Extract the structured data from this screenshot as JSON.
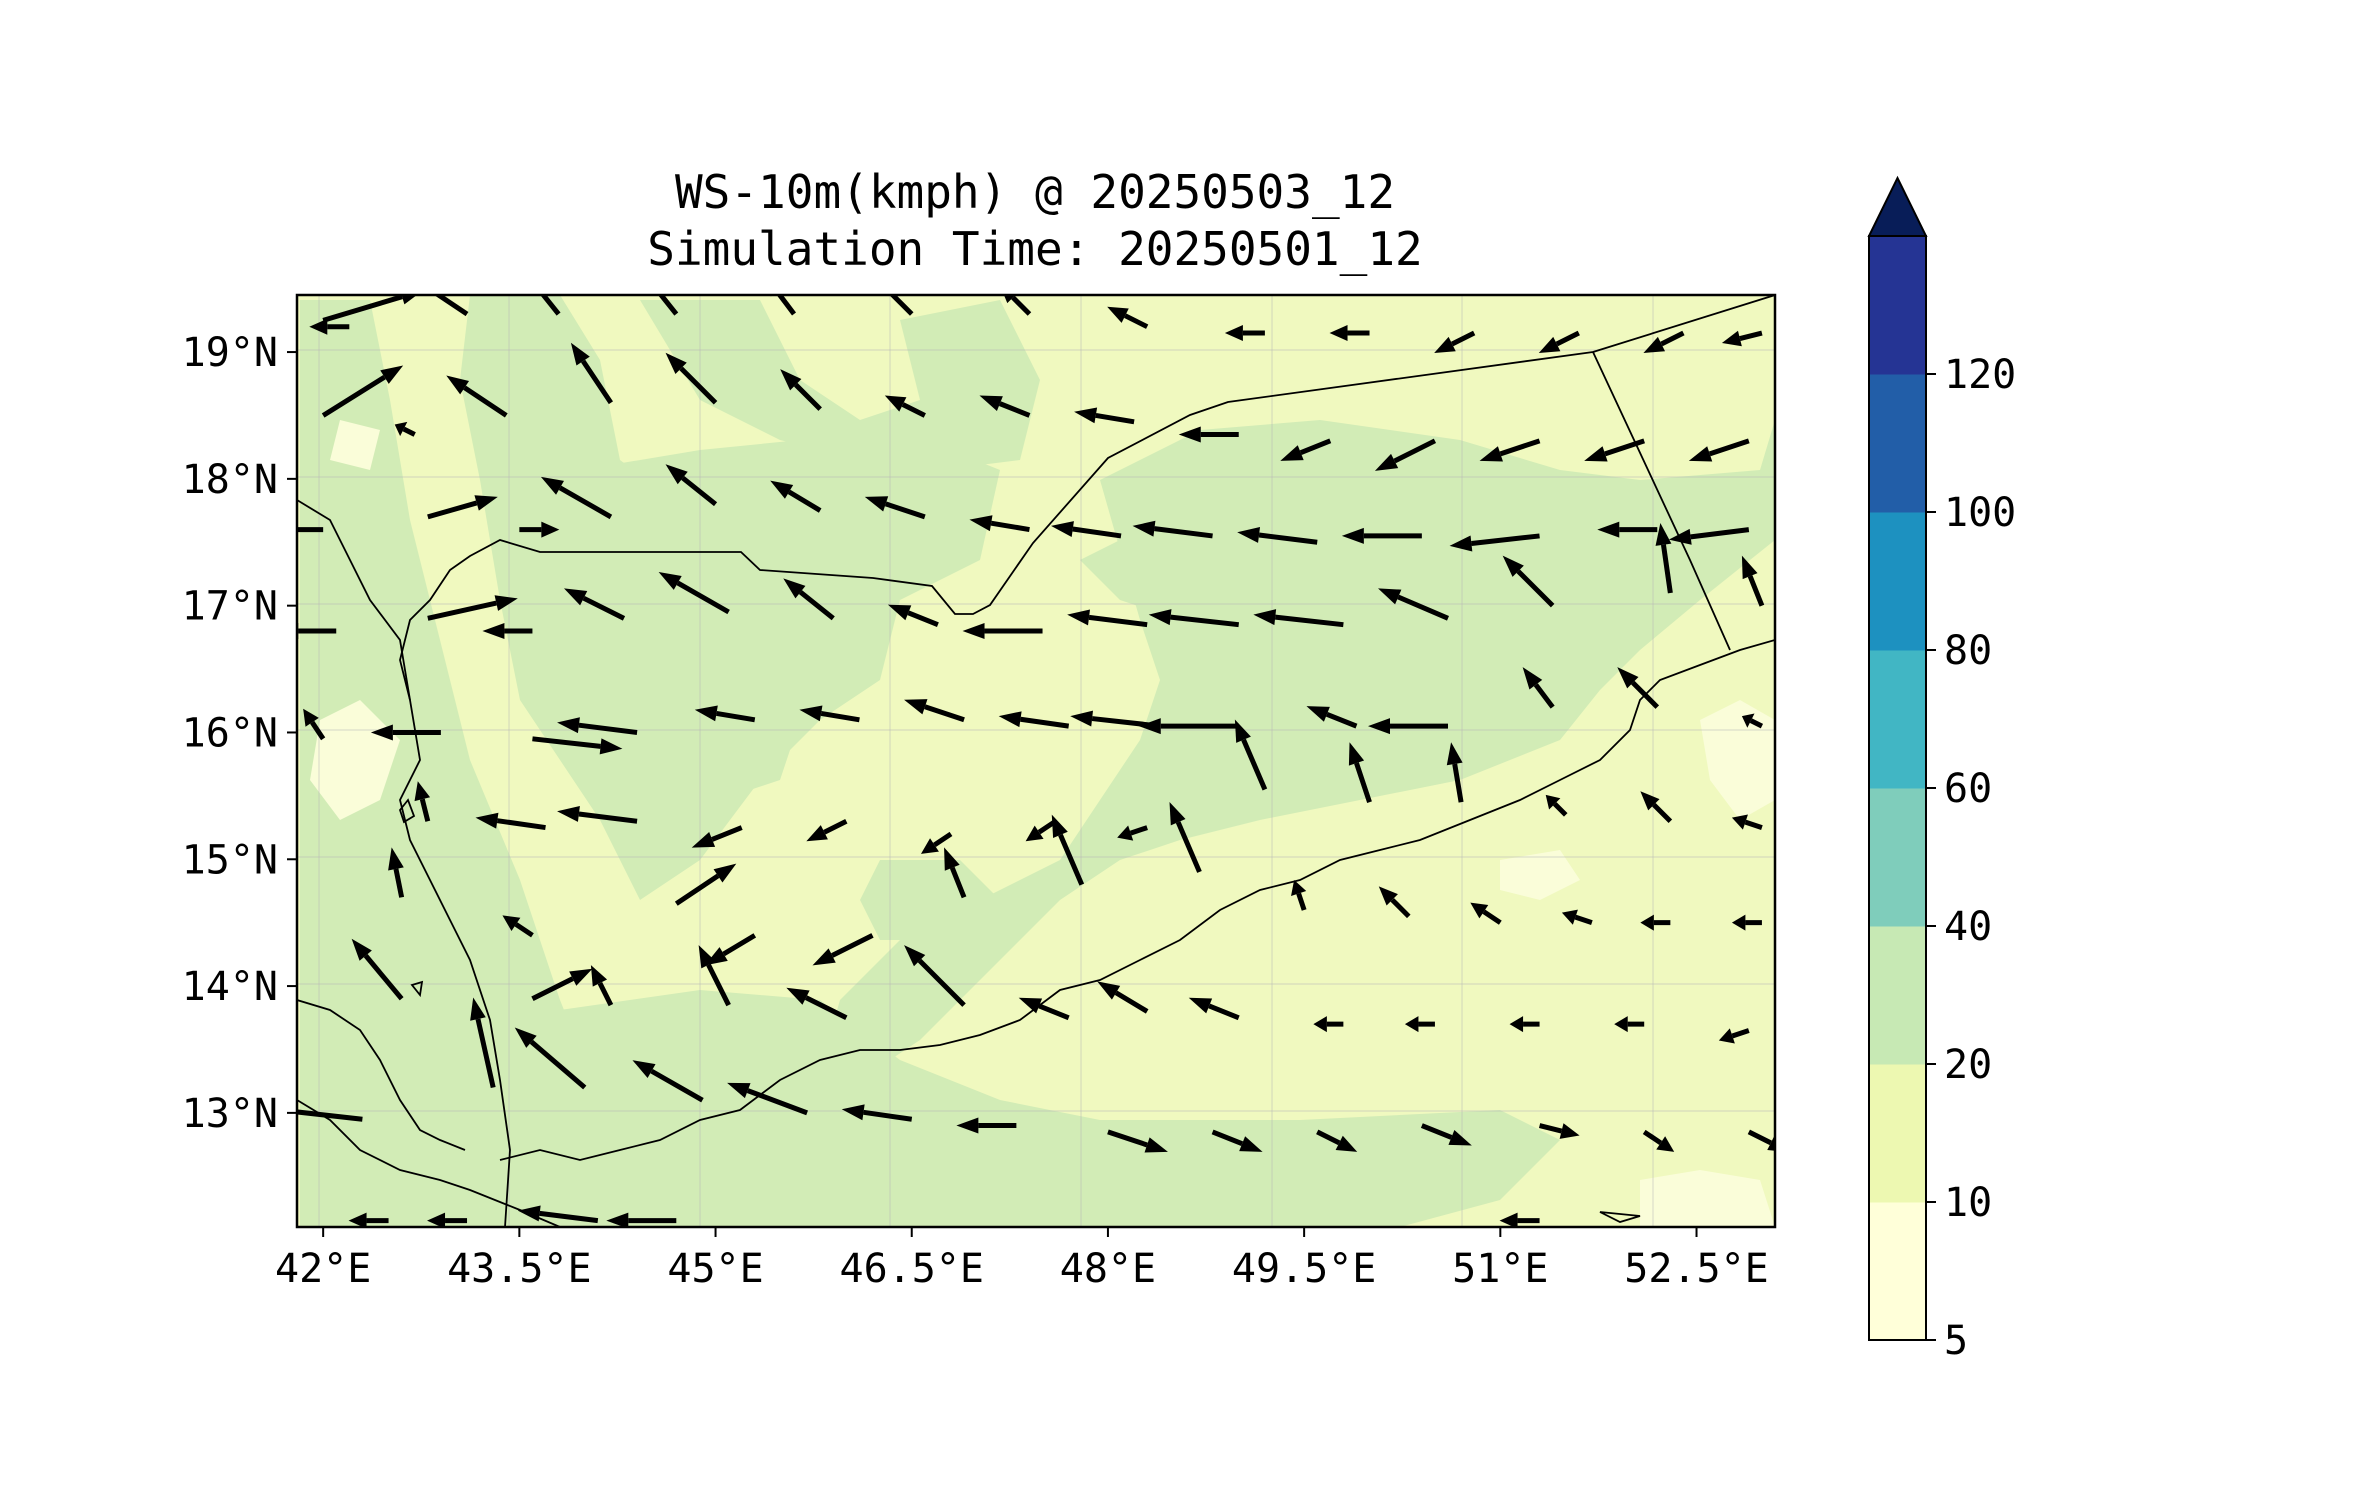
{
  "title": {
    "line1": "WS-10m(kmph) @ 20250503_12",
    "line2": "Simulation Time: 20250501_12"
  },
  "map": {
    "extent": {
      "lon_min": 41.8,
      "lon_max": 53.1,
      "lat_min": 12.1,
      "lat_max": 19.45
    },
    "x_ticks": [
      {
        "value": 42,
        "label": "42°E"
      },
      {
        "value": 43.5,
        "label": "43.5°E"
      },
      {
        "value": 45,
        "label": "45°E"
      },
      {
        "value": 46.5,
        "label": "46.5°E"
      },
      {
        "value": 48,
        "label": "48°E"
      },
      {
        "value": 49.5,
        "label": "49.5°E"
      },
      {
        "value": 51,
        "label": "51°E"
      },
      {
        "value": 52.5,
        "label": "52.5°E"
      }
    ],
    "y_ticks": [
      {
        "value": 19,
        "label": "19°N"
      },
      {
        "value": 18,
        "label": "18°N"
      },
      {
        "value": 17,
        "label": "17°N"
      },
      {
        "value": 16,
        "label": "16°N"
      },
      {
        "value": 15,
        "label": "15°N"
      },
      {
        "value": 14,
        "label": "14°N"
      },
      {
        "value": 13,
        "label": "13°N"
      }
    ],
    "gridlines": true
  },
  "colorbar": {
    "levels": [
      5,
      10,
      20,
      40,
      60,
      80,
      100,
      120
    ],
    "labels": [
      "5",
      "10",
      "20",
      "40",
      "60",
      "80",
      "100",
      "120"
    ],
    "colors": [
      "#ffffd9",
      "#edf8b1",
      "#c7e9b4",
      "#7fcdbb",
      "#41b6c4",
      "#1d91c0",
      "#225ea8",
      "#253494"
    ],
    "extend_color": "#081d58",
    "extend": "max"
  },
  "colors": {
    "field_low": "#f0f9bf",
    "field_mid": "#d2ecb6",
    "field_pale": "#fafdd9",
    "arrow": "#000000"
  },
  "chart_data": {
    "type": "quiver",
    "variable": "WS-10m(kmph)",
    "arrow_units": "km/h",
    "arrows": [
      {
        "lon": 42.0,
        "lat": 19.25,
        "u": 10,
        "v": 3
      },
      {
        "lon": 42.2,
        "lat": 19.2,
        "u": -4,
        "v": 0
      },
      {
        "lon": 43.1,
        "lat": 19.3,
        "u": -6,
        "v": 4
      },
      {
        "lon": 43.8,
        "lat": 19.3,
        "u": -4,
        "v": 5
      },
      {
        "lon": 44.7,
        "lat": 19.3,
        "u": -4,
        "v": 5
      },
      {
        "lon": 45.6,
        "lat": 19.3,
        "u": -3,
        "v": 4
      },
      {
        "lon": 46.5,
        "lat": 19.3,
        "u": -4,
        "v": 4
      },
      {
        "lon": 47.4,
        "lat": 19.3,
        "u": -3,
        "v": 3
      },
      {
        "lon": 48.3,
        "lat": 19.2,
        "u": -4,
        "v": 2
      },
      {
        "lon": 49.2,
        "lat": 19.15,
        "u": -4,
        "v": 0
      },
      {
        "lon": 50.0,
        "lat": 19.15,
        "u": -4,
        "v": 0
      },
      {
        "lon": 50.8,
        "lat": 19.15,
        "u": -4,
        "v": -2
      },
      {
        "lon": 51.6,
        "lat": 19.15,
        "u": -4,
        "v": -2
      },
      {
        "lon": 52.4,
        "lat": 19.15,
        "u": -4,
        "v": -2
      },
      {
        "lon": 53.0,
        "lat": 19.15,
        "u": -4,
        "v": -1
      },
      {
        "lon": 42.0,
        "lat": 18.5,
        "u": 8,
        "v": 5
      },
      {
        "lon": 42.7,
        "lat": 18.35,
        "u": -2,
        "v": 1
      },
      {
        "lon": 43.4,
        "lat": 18.5,
        "u": -6,
        "v": 4
      },
      {
        "lon": 44.2,
        "lat": 18.6,
        "u": -4,
        "v": 6
      },
      {
        "lon": 45.0,
        "lat": 18.6,
        "u": -5,
        "v": 5
      },
      {
        "lon": 45.8,
        "lat": 18.55,
        "u": -4,
        "v": 4
      },
      {
        "lon": 46.6,
        "lat": 18.5,
        "u": -4,
        "v": 2
      },
      {
        "lon": 47.4,
        "lat": 18.5,
        "u": -5,
        "v": 2
      },
      {
        "lon": 48.2,
        "lat": 18.45,
        "u": -6,
        "v": 1
      },
      {
        "lon": 49.0,
        "lat": 18.35,
        "u": -6,
        "v": 0
      },
      {
        "lon": 49.7,
        "lat": 18.3,
        "u": -5,
        "v": -2
      },
      {
        "lon": 50.5,
        "lat": 18.3,
        "u": -6,
        "v": -3
      },
      {
        "lon": 51.3,
        "lat": 18.3,
        "u": -6,
        "v": -2
      },
      {
        "lon": 52.1,
        "lat": 18.3,
        "u": -6,
        "v": -2
      },
      {
        "lon": 52.9,
        "lat": 18.3,
        "u": -6,
        "v": -2
      },
      {
        "lon": 42.0,
        "lat": 17.6,
        "u": -5,
        "v": 0
      },
      {
        "lon": 42.8,
        "lat": 17.7,
        "u": 7,
        "v": 2
      },
      {
        "lon": 43.5,
        "lat": 17.6,
        "u": 4,
        "v": 0
      },
      {
        "lon": 44.2,
        "lat": 17.7,
        "u": -7,
        "v": 4
      },
      {
        "lon": 45.0,
        "lat": 17.8,
        "u": -5,
        "v": 4
      },
      {
        "lon": 45.8,
        "lat": 17.75,
        "u": -5,
        "v": 3
      },
      {
        "lon": 46.6,
        "lat": 17.7,
        "u": -6,
        "v": 2
      },
      {
        "lon": 47.4,
        "lat": 17.6,
        "u": -6,
        "v": 1
      },
      {
        "lon": 48.1,
        "lat": 17.55,
        "u": -7,
        "v": 1
      },
      {
        "lon": 48.8,
        "lat": 17.55,
        "u": -8,
        "v": 1
      },
      {
        "lon": 49.6,
        "lat": 17.5,
        "u": -8,
        "v": 1
      },
      {
        "lon": 50.4,
        "lat": 17.55,
        "u": -8,
        "v": 0
      },
      {
        "lon": 51.3,
        "lat": 17.55,
        "u": -9,
        "v": -1
      },
      {
        "lon": 52.2,
        "lat": 17.6,
        "u": -6,
        "v": 0
      },
      {
        "lon": 52.9,
        "lat": 17.6,
        "u": -8,
        "v": -1
      },
      {
        "lon": 42.1,
        "lat": 16.8,
        "u": -6,
        "v": 0
      },
      {
        "lon": 42.8,
        "lat": 16.9,
        "u": 9,
        "v": 2
      },
      {
        "lon": 43.6,
        "lat": 16.8,
        "u": -5,
        "v": 0
      },
      {
        "lon": 44.3,
        "lat": 16.9,
        "u": -6,
        "v": 3
      },
      {
        "lon": 45.1,
        "lat": 16.95,
        "u": -7,
        "v": 4
      },
      {
        "lon": 45.9,
        "lat": 16.9,
        "u": -5,
        "v": 4
      },
      {
        "lon": 46.7,
        "lat": 16.85,
        "u": -5,
        "v": 2
      },
      {
        "lon": 47.5,
        "lat": 16.8,
        "u": -8,
        "v": 0
      },
      {
        "lon": 48.3,
        "lat": 16.85,
        "u": -8,
        "v": 1
      },
      {
        "lon": 49.0,
        "lat": 16.85,
        "u": -9,
        "v": 1
      },
      {
        "lon": 49.8,
        "lat": 16.85,
        "u": -9,
        "v": 1
      },
      {
        "lon": 50.6,
        "lat": 16.9,
        "u": -7,
        "v": 3
      },
      {
        "lon": 51.4,
        "lat": 17.0,
        "u": -5,
        "v": 5
      },
      {
        "lon": 52.3,
        "lat": 17.1,
        "u": -1,
        "v": 7
      },
      {
        "lon": 53.0,
        "lat": 17.0,
        "u": -2,
        "v": 5
      },
      {
        "lon": 42.0,
        "lat": 15.95,
        "u": -2,
        "v": 3
      },
      {
        "lon": 42.9,
        "lat": 16.0,
        "u": -7,
        "v": 0
      },
      {
        "lon": 43.6,
        "lat": 15.95,
        "u": 9,
        "v": -1
      },
      {
        "lon": 44.4,
        "lat": 16.0,
        "u": -8,
        "v": 1
      },
      {
        "lon": 45.3,
        "lat": 16.1,
        "u": -6,
        "v": 1
      },
      {
        "lon": 46.1,
        "lat": 16.1,
        "u": -6,
        "v": 1
      },
      {
        "lon": 46.9,
        "lat": 16.1,
        "u": -6,
        "v": 2
      },
      {
        "lon": 47.7,
        "lat": 16.05,
        "u": -7,
        "v": 1
      },
      {
        "lon": 48.4,
        "lat": 16.05,
        "u": -9,
        "v": 1
      },
      {
        "lon": 49.0,
        "lat": 16.05,
        "u": -10,
        "v": 0
      },
      {
        "lon": 49.9,
        "lat": 16.05,
        "u": -5,
        "v": 2
      },
      {
        "lon": 50.6,
        "lat": 16.05,
        "u": -8,
        "v": 0
      },
      {
        "lon": 51.4,
        "lat": 16.2,
        "u": -3,
        "v": 4
      },
      {
        "lon": 52.2,
        "lat": 16.2,
        "u": -4,
        "v": 4
      },
      {
        "lon": 53.0,
        "lat": 16.05,
        "u": -2,
        "v": 1
      },
      {
        "lon": 42.8,
        "lat": 15.3,
        "u": -1,
        "v": 4
      },
      {
        "lon": 43.7,
        "lat": 15.25,
        "u": -7,
        "v": 1
      },
      {
        "lon": 44.4,
        "lat": 15.3,
        "u": -8,
        "v": 1
      },
      {
        "lon": 45.2,
        "lat": 15.25,
        "u": -5,
        "v": -2
      },
      {
        "lon": 46.0,
        "lat": 15.3,
        "u": -4,
        "v": -2
      },
      {
        "lon": 46.8,
        "lat": 15.2,
        "u": -3,
        "v": -2
      },
      {
        "lon": 47.6,
        "lat": 15.3,
        "u": -3,
        "v": -2
      },
      {
        "lon": 48.3,
        "lat": 15.25,
        "u": -3,
        "v": -1
      },
      {
        "lon": 49.2,
        "lat": 15.55,
        "u": -3,
        "v": 7
      },
      {
        "lon": 50.0,
        "lat": 15.45,
        "u": -2,
        "v": 6
      },
      {
        "lon": 50.7,
        "lat": 15.45,
        "u": -1,
        "v": 6
      },
      {
        "lon": 51.5,
        "lat": 15.35,
        "u": -2,
        "v": 2
      },
      {
        "lon": 52.3,
        "lat": 15.3,
        "u": -3,
        "v": 3
      },
      {
        "lon": 53.0,
        "lat": 15.25,
        "u": -3,
        "v": 1
      },
      {
        "lon": 42.6,
        "lat": 14.7,
        "u": -1,
        "v": 5
      },
      {
        "lon": 43.6,
        "lat": 14.4,
        "u": -3,
        "v": 2
      },
      {
        "lon": 44.7,
        "lat": 14.65,
        "u": 6,
        "v": 4
      },
      {
        "lon": 45.3,
        "lat": 14.4,
        "u": -5,
        "v": -3
      },
      {
        "lon": 46.2,
        "lat": 14.4,
        "u": -6,
        "v": -3
      },
      {
        "lon": 46.9,
        "lat": 14.7,
        "u": -2,
        "v": 5
      },
      {
        "lon": 47.8,
        "lat": 14.8,
        "u": -3,
        "v": 7
      },
      {
        "lon": 48.7,
        "lat": 14.9,
        "u": -3,
        "v": 7
      },
      {
        "lon": 49.5,
        "lat": 14.6,
        "u": -1,
        "v": 3
      },
      {
        "lon": 50.3,
        "lat": 14.55,
        "u": -3,
        "v": 3
      },
      {
        "lon": 51.0,
        "lat": 14.5,
        "u": -3,
        "v": 2
      },
      {
        "lon": 51.7,
        "lat": 14.5,
        "u": -3,
        "v": 1
      },
      {
        "lon": 52.3,
        "lat": 14.5,
        "u": -3,
        "v": 0
      },
      {
        "lon": 53.0,
        "lat": 14.5,
        "u": -3,
        "v": 0
      },
      {
        "lon": 42.6,
        "lat": 13.9,
        "u": -5,
        "v": 6
      },
      {
        "lon": 43.6,
        "lat": 13.9,
        "u": 6,
        "v": 3
      },
      {
        "lon": 44.2,
        "lat": 13.85,
        "u": -2,
        "v": 4
      },
      {
        "lon": 45.1,
        "lat": 13.85,
        "u": -3,
        "v": 6
      },
      {
        "lon": 46.0,
        "lat": 13.75,
        "u": -6,
        "v": 3
      },
      {
        "lon": 46.9,
        "lat": 13.85,
        "u": -6,
        "v": 6
      },
      {
        "lon": 47.7,
        "lat": 13.75,
        "u": -5,
        "v": 2
      },
      {
        "lon": 48.3,
        "lat": 13.8,
        "u": -5,
        "v": 3
      },
      {
        "lon": 49.0,
        "lat": 13.75,
        "u": -5,
        "v": 2
      },
      {
        "lon": 49.8,
        "lat": 13.7,
        "u": -3,
        "v": 0
      },
      {
        "lon": 50.5,
        "lat": 13.7,
        "u": -3,
        "v": 0
      },
      {
        "lon": 51.3,
        "lat": 13.7,
        "u": -3,
        "v": 0
      },
      {
        "lon": 52.1,
        "lat": 13.7,
        "u": -3,
        "v": 0
      },
      {
        "lon": 52.9,
        "lat": 13.65,
        "u": -3,
        "v": -1
      },
      {
        "lon": 42.3,
        "lat": 12.95,
        "u": -9,
        "v": 1
      },
      {
        "lon": 43.3,
        "lat": 13.2,
        "u": -2,
        "v": 9
      },
      {
        "lon": 44.0,
        "lat": 13.2,
        "u": -7,
        "v": 6
      },
      {
        "lon": 44.9,
        "lat": 13.1,
        "u": -7,
        "v": 4
      },
      {
        "lon": 45.7,
        "lat": 13.0,
        "u": -8,
        "v": 3
      },
      {
        "lon": 46.5,
        "lat": 12.95,
        "u": -7,
        "v": 1
      },
      {
        "lon": 47.3,
        "lat": 12.9,
        "u": -6,
        "v": 0
      },
      {
        "lon": 48.0,
        "lat": 12.85,
        "u": 6,
        "v": -2
      },
      {
        "lon": 48.8,
        "lat": 12.85,
        "u": 5,
        "v": -2
      },
      {
        "lon": 49.6,
        "lat": 12.85,
        "u": 4,
        "v": -2
      },
      {
        "lon": 50.4,
        "lat": 12.9,
        "u": 5,
        "v": -2
      },
      {
        "lon": 51.3,
        "lat": 12.9,
        "u": 4,
        "v": -1
      },
      {
        "lon": 52.1,
        "lat": 12.85,
        "u": 3,
        "v": -2
      },
      {
        "lon": 52.9,
        "lat": 12.85,
        "u": 4,
        "v": -2
      },
      {
        "lon": 42.5,
        "lat": 12.15,
        "u": -4,
        "v": 0
      },
      {
        "lon": 43.1,
        "lat": 12.15,
        "u": -4,
        "v": 0
      },
      {
        "lon": 44.1,
        "lat": 12.15,
        "u": -8,
        "v": 1
      },
      {
        "lon": 44.7,
        "lat": 12.15,
        "u": -7,
        "v": 0
      },
      {
        "lon": 51.3,
        "lat": 12.15,
        "u": -4,
        "v": 0
      }
    ]
  }
}
